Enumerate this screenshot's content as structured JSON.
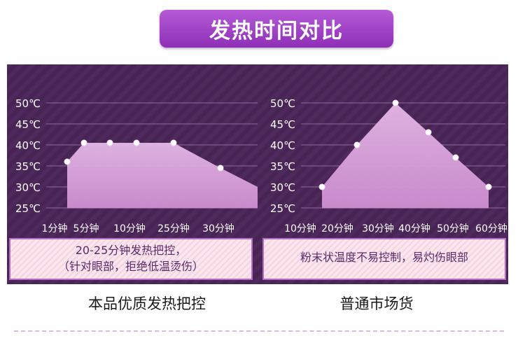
{
  "header": {
    "title": "发热时间对比"
  },
  "chart_data": [
    {
      "type": "area",
      "y_ticks": [
        "50℃",
        "45℃",
        "40℃",
        "35℃",
        "30℃",
        "25℃"
      ],
      "y_values": [
        50,
        45,
        40,
        35,
        30,
        25
      ],
      "ylim": [
        25,
        50
      ],
      "x_labels": [
        "1分钟",
        "5分钟",
        "10分钟",
        "25分钟",
        "30分钟"
      ],
      "points": [
        {
          "x": 1,
          "y": 36
        },
        {
          "x": 5,
          "y": 40.5
        },
        {
          "x": 10,
          "y": 40.5
        },
        {
          "x": 15,
          "y": 40.5
        },
        {
          "x": 25,
          "y": 40.5
        },
        {
          "x": 30,
          "y": 34.5
        },
        {
          "x": 40,
          "y": 30
        }
      ],
      "marked_points": 6,
      "note_lines": [
        "20-25分钟发热把控，",
        "（针对眼部，拒绝低温烫伤）"
      ],
      "caption": "本品优质发热把控"
    },
    {
      "type": "area",
      "y_ticks": [
        "50℃",
        "45℃",
        "40℃",
        "35℃",
        "30℃",
        "25℃"
      ],
      "y_values": [
        50,
        45,
        40,
        35,
        30,
        25
      ],
      "ylim": [
        25,
        50
      ],
      "x_labels": [
        "10分钟",
        "20分钟",
        "30分钟",
        "40分钟",
        "50分钟",
        "60分钟"
      ],
      "points": [
        {
          "x": 10,
          "y": 30
        },
        {
          "x": 20,
          "y": 40
        },
        {
          "x": 30,
          "y": 50
        },
        {
          "x": 40,
          "y": 43
        },
        {
          "x": 50,
          "y": 37
        },
        {
          "x": 60,
          "y": 30
        }
      ],
      "marked_points": 6,
      "note_lines": [
        "粉末状温度不易控制，易灼伤眼部"
      ],
      "caption": "普通市场货"
    }
  ],
  "colors": {
    "badge": "#9d3fc4",
    "panel_bg": "#4a2558",
    "area_fill": "#d9a6dc",
    "grid": "#8d6a9c",
    "note_bg": "#fbe6ee",
    "note_border": "#b46fc3"
  }
}
